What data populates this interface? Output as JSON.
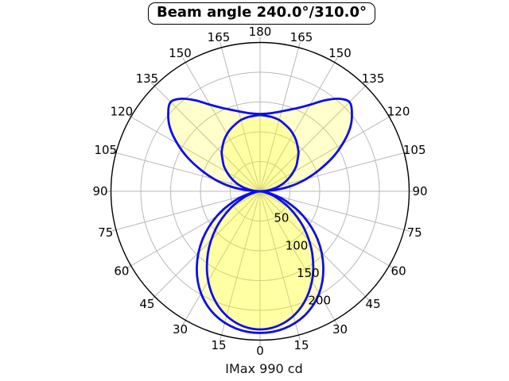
{
  "title": "Beam angle 240.0°/310.0°",
  "footer": "IMax 990 cd",
  "imax_cd": 990,
  "beam_angles_deg": [
    240.0,
    310.0
  ],
  "colors": {
    "curve": "#0d0df0",
    "fill": "rgba(255,255,0,0.20)",
    "grid": "#b9b9b9",
    "outer_circle": "#000000",
    "text": "#000000",
    "background": "#ffffff"
  },
  "chart_data": {
    "type": "line",
    "subtype": "polar-photometric",
    "title": "Beam angle 240.0°/310.0°",
    "annotation": "IMax 990 cd",
    "r_unit": "cd",
    "r_max": 250,
    "r_ticks": [
      50,
      100,
      150,
      200
    ],
    "r_tick_angle_deg": 22.5,
    "angle_tick_step_deg": 15,
    "angle_labels": [
      0,
      15,
      30,
      45,
      60,
      75,
      90,
      105,
      120,
      135,
      150,
      165,
      180
    ],
    "angle_zero_position": "bottom",
    "mirrored_left_right": true,
    "grid": true,
    "series": [
      {
        "name": "curve_wide",
        "points": [
          [
            0,
            238
          ],
          [
            10,
            234
          ],
          [
            20,
            221
          ],
          [
            30,
            198
          ],
          [
            40,
            165
          ],
          [
            50,
            126
          ],
          [
            60,
            84
          ],
          [
            70,
            44
          ],
          [
            80,
            15
          ],
          [
            85,
            5
          ],
          [
            90,
            0
          ],
          [
            95,
            26
          ],
          [
            100,
            54
          ],
          [
            105,
            80
          ],
          [
            110,
            106
          ],
          [
            115,
            134
          ],
          [
            120,
            160
          ],
          [
            125,
            184
          ],
          [
            130,
            201
          ],
          [
            135,
            212
          ],
          [
            140,
            203
          ],
          [
            145,
            186
          ],
          [
            150,
            168
          ],
          [
            155,
            155
          ],
          [
            160,
            146
          ],
          [
            165,
            139
          ],
          [
            170,
            134
          ],
          [
            175,
            131
          ],
          [
            180,
            130
          ]
        ]
      },
      {
        "name": "curve_narrow",
        "points": [
          [
            0,
            232
          ],
          [
            10,
            225
          ],
          [
            20,
            205
          ],
          [
            30,
            174
          ],
          [
            40,
            136
          ],
          [
            50,
            96
          ],
          [
            60,
            58
          ],
          [
            70,
            27
          ],
          [
            80,
            7
          ],
          [
            90,
            0
          ],
          [
            95,
            11
          ],
          [
            100,
            22
          ],
          [
            105,
            33
          ],
          [
            110,
            44
          ],
          [
            115,
            54
          ],
          [
            120,
            64
          ],
          [
            125,
            74
          ],
          [
            130,
            82
          ],
          [
            135,
            91
          ],
          [
            140,
            98
          ],
          [
            145,
            105
          ],
          [
            150,
            111
          ],
          [
            155,
            116
          ],
          [
            160,
            120
          ],
          [
            165,
            124
          ],
          [
            170,
            126
          ],
          [
            175,
            127
          ],
          [
            180,
            128
          ]
        ]
      }
    ]
  }
}
